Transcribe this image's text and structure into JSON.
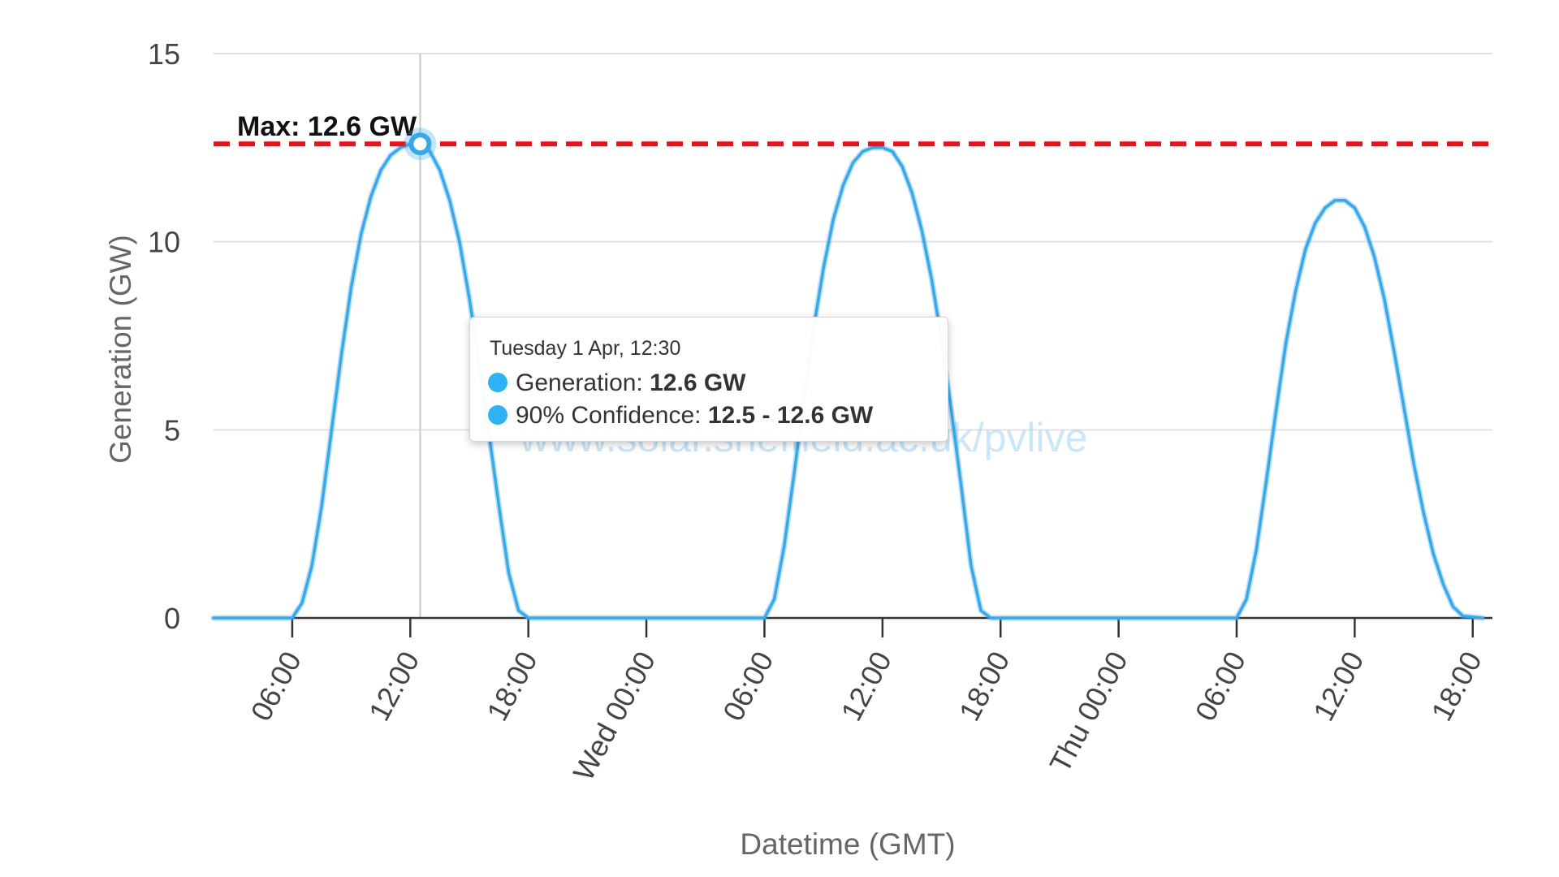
{
  "chart_data": {
    "type": "line",
    "title": "",
    "xlabel": "Datetime (GMT)",
    "ylabel": "Generation (GW)",
    "ylim": [
      0,
      15
    ],
    "yticks": [
      0,
      5,
      10,
      15
    ],
    "xlim": [
      "Tue 1 Apr 02:00",
      "Thu 3 Apr 19:00"
    ],
    "xticks": [
      {
        "time": "Tue 06:00",
        "label": "06:00"
      },
      {
        "time": "Tue 12:00",
        "label": "12:00"
      },
      {
        "time": "Tue 18:00",
        "label": "18:00"
      },
      {
        "time": "Wed 00:00",
        "label": "Wed 00:00"
      },
      {
        "time": "Wed 06:00",
        "label": "06:00"
      },
      {
        "time": "Wed 12:00",
        "label": "12:00"
      },
      {
        "time": "Wed 18:00",
        "label": "18:00"
      },
      {
        "time": "Thu 00:00",
        "label": "Thu 00:00"
      },
      {
        "time": "Thu 06:00",
        "label": "06:00"
      },
      {
        "time": "Thu 12:00",
        "label": "12:00"
      },
      {
        "time": "Thu 18:00",
        "label": "18:00"
      }
    ],
    "grid": true,
    "color": "#3aa8e8",
    "max_line": {
      "value": 12.6,
      "label": "Max: 12.6 GW",
      "color": "#e8141c",
      "style": "dashed"
    },
    "series": [
      {
        "values": [
          [
            "Tue 02:00",
            0
          ],
          [
            "Tue 06:00",
            0
          ],
          [
            "Tue 06:30",
            0.4
          ],
          [
            "Tue 07:00",
            1.4
          ],
          [
            "Tue 07:30",
            3.0
          ],
          [
            "Tue 08:00",
            5.0
          ],
          [
            "Tue 08:30",
            7.0
          ],
          [
            "Tue 09:00",
            8.8
          ],
          [
            "Tue 09:30",
            10.2
          ],
          [
            "Tue 10:00",
            11.2
          ],
          [
            "Tue 10:30",
            11.9
          ],
          [
            "Tue 11:00",
            12.3
          ],
          [
            "Tue 11:30",
            12.5
          ],
          [
            "Tue 12:00",
            12.6
          ],
          [
            "Tue 12:30",
            12.6
          ],
          [
            "Tue 13:00",
            12.4
          ],
          [
            "Tue 13:30",
            11.9
          ],
          [
            "Tue 14:00",
            11.1
          ],
          [
            "Tue 14:30",
            10.0
          ],
          [
            "Tue 15:00",
            8.5
          ],
          [
            "Tue 15:30",
            6.8
          ],
          [
            "Tue 16:00",
            4.9
          ],
          [
            "Tue 16:30",
            3.0
          ],
          [
            "Tue 17:00",
            1.2
          ],
          [
            "Tue 17:30",
            0.2
          ],
          [
            "Tue 18:00",
            0
          ],
          [
            "Wed 06:00",
            0
          ],
          [
            "Wed 06:30",
            0.5
          ],
          [
            "Wed 07:00",
            1.9
          ],
          [
            "Wed 07:30",
            3.8
          ],
          [
            "Wed 08:00",
            5.8
          ],
          [
            "Wed 08:30",
            7.7
          ],
          [
            "Wed 09:00",
            9.3
          ],
          [
            "Wed 09:30",
            10.6
          ],
          [
            "Wed 10:00",
            11.5
          ],
          [
            "Wed 10:30",
            12.1
          ],
          [
            "Wed 11:00",
            12.4
          ],
          [
            "Wed 11:30",
            12.5
          ],
          [
            "Wed 12:00",
            12.5
          ],
          [
            "Wed 12:30",
            12.4
          ],
          [
            "Wed 13:00",
            12.0
          ],
          [
            "Wed 13:30",
            11.3
          ],
          [
            "Wed 14:00",
            10.3
          ],
          [
            "Wed 14:30",
            9.0
          ],
          [
            "Wed 15:00",
            7.4
          ],
          [
            "Wed 15:30",
            5.5
          ],
          [
            "Wed 16:00",
            3.5
          ],
          [
            "Wed 16:30",
            1.4
          ],
          [
            "Wed 17:00",
            0.2
          ],
          [
            "Wed 17:30",
            0
          ],
          [
            "Thu 06:00",
            0
          ],
          [
            "Thu 06:30",
            0.5
          ],
          [
            "Thu 07:00",
            1.8
          ],
          [
            "Thu 07:30",
            3.6
          ],
          [
            "Thu 08:00",
            5.5
          ],
          [
            "Thu 08:30",
            7.3
          ],
          [
            "Thu 09:00",
            8.7
          ],
          [
            "Thu 09:30",
            9.8
          ],
          [
            "Thu 10:00",
            10.5
          ],
          [
            "Thu 10:30",
            10.9
          ],
          [
            "Thu 11:00",
            11.1
          ],
          [
            "Thu 11:30",
            11.1
          ],
          [
            "Thu 12:00",
            10.9
          ],
          [
            "Thu 12:30",
            10.4
          ],
          [
            "Thu 13:00",
            9.6
          ],
          [
            "Thu 13:30",
            8.5
          ],
          [
            "Thu 14:00",
            7.1
          ],
          [
            "Thu 14:30",
            5.6
          ],
          [
            "Thu 15:00",
            4.1
          ],
          [
            "Thu 15:30",
            2.8
          ],
          [
            "Thu 16:00",
            1.7
          ],
          [
            "Thu 16:30",
            0.9
          ],
          [
            "Thu 17:00",
            0.3
          ],
          [
            "Thu 17:30",
            0.05
          ],
          [
            "Thu 18:30",
            0
          ]
        ]
      }
    ],
    "highlight_point": {
      "time": "Tue 12:30",
      "value": 12.6
    },
    "tooltip": {
      "header": "Tuesday 1 Apr, 12:30",
      "rows": [
        {
          "label": "Generation: ",
          "value": "12.6 GW"
        },
        {
          "label": "90% Confidence: ",
          "value": "12.5 - 12.6 GW"
        }
      ]
    },
    "watermark": "www.solar.sheffield.ac.uk/pvlive"
  }
}
